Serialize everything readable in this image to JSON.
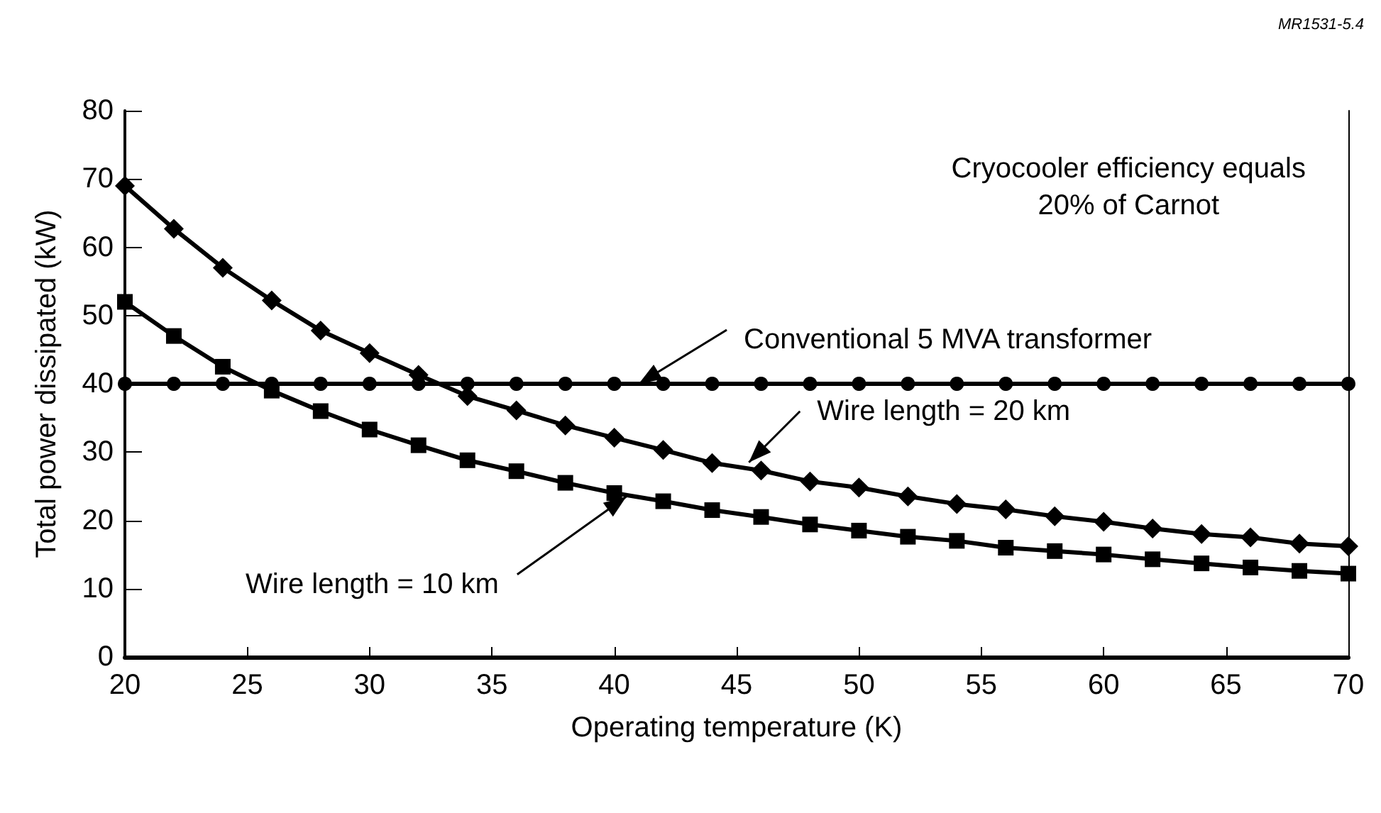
{
  "chart_data": {
    "type": "line",
    "xlabel": "Operating temperature (K)",
    "ylabel": "Total power dissipated (kW)",
    "x": [
      20,
      22,
      24,
      26,
      28,
      30,
      32,
      34,
      36,
      38,
      40,
      42,
      44,
      46,
      48,
      50,
      52,
      54,
      56,
      58,
      60,
      62,
      64,
      66,
      68,
      70
    ],
    "series": [
      {
        "color": "#000000",
        "marker": "diamond",
        "values": [
          69,
          62.7,
          57,
          52.2,
          47.8,
          44.5,
          41.3,
          38.2,
          36.1,
          33.9,
          32.1,
          30.3,
          28.4,
          27.3,
          25.7,
          24.8,
          23.5,
          22.4,
          21.6,
          20.6,
          19.8,
          18.8,
          18,
          17.5,
          16.6,
          16.2
        ]
      },
      {
        "color": "#000000",
        "marker": "square",
        "values": [
          52,
          47,
          42.5,
          39,
          36,
          33.3,
          31,
          28.8,
          27.2,
          25.5,
          24,
          22.8,
          21.5,
          20.5,
          19.4,
          18.5,
          17.6,
          17,
          16,
          15.5,
          15,
          14.3,
          13.7,
          13.1,
          12.6,
          12.2
        ]
      },
      {
        "color": "#000000",
        "marker": "circle",
        "values": [
          40,
          40,
          40,
          40,
          40,
          40,
          40,
          40,
          40,
          40,
          40,
          40,
          40,
          40,
          40,
          40,
          40,
          40,
          40,
          40,
          40,
          40,
          40,
          40,
          40,
          40
        ]
      }
    ],
    "xlim": [
      20,
      70
    ],
    "xticks": [
      20,
      25,
      30,
      35,
      40,
      45,
      50,
      55,
      60,
      65,
      70
    ],
    "ylim": [
      0,
      80
    ],
    "yticks": [
      0,
      10,
      20,
      30,
      40,
      50,
      60,
      70,
      80
    ],
    "grid": false,
    "line_style": "solid",
    "annotations": [
      {
        "text": "Conventional 5 MVA transformer",
        "x": 41,
        "y": 40
      },
      {
        "text": "Wire length = 20 km",
        "x": 45.5,
        "y": 28.5
      },
      {
        "text": "Wire length = 10 km",
        "x": 40.5,
        "y": 23.5
      },
      "Cryocooler efficiency equals\n20% of Carnot",
      "MR1531-5.4"
    ]
  }
}
